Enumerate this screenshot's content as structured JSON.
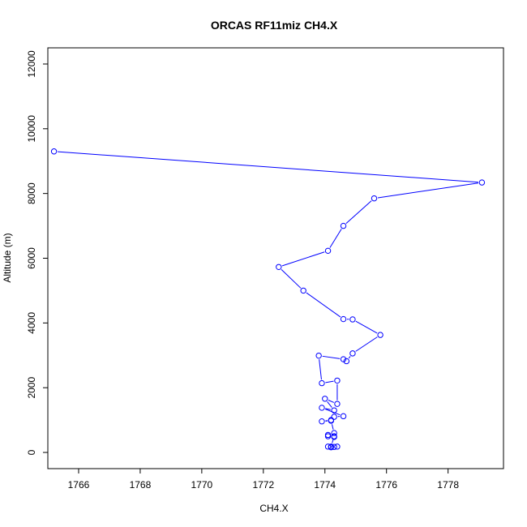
{
  "chart_data": {
    "type": "line",
    "title": "ORCAS RF11miz CH4.X",
    "xlabel": "CH4.X",
    "ylabel": "Altitude (m)",
    "xlim": [
      1765.0,
      1779.8
    ],
    "ylim": [
      -500,
      12500
    ],
    "xticks": [
      1766,
      1768,
      1770,
      1772,
      1774,
      1776,
      1778
    ],
    "yticks": [
      0,
      2000,
      4000,
      6000,
      8000,
      10000,
      12000
    ],
    "grid": false,
    "colors": {
      "series": "#0000ff",
      "axis": "#000000"
    },
    "series": [
      {
        "marker": "open-circle",
        "points": [
          {
            "x": 1765.2,
            "y": 9300
          },
          {
            "x": 1779.1,
            "y": 8340
          },
          {
            "x": 1775.6,
            "y": 7850
          },
          {
            "x": 1774.6,
            "y": 7000
          },
          {
            "x": 1774.1,
            "y": 6230
          },
          {
            "x": 1772.5,
            "y": 5730
          },
          {
            "x": 1773.3,
            "y": 5000
          },
          {
            "x": 1774.6,
            "y": 4120
          },
          {
            "x": 1774.9,
            "y": 4110
          },
          {
            "x": 1775.8,
            "y": 3630
          },
          {
            "x": 1774.9,
            "y": 3060
          },
          {
            "x": 1774.7,
            "y": 2820
          },
          {
            "x": 1774.6,
            "y": 2880
          },
          {
            "x": 1773.8,
            "y": 2990
          },
          {
            "x": 1773.9,
            "y": 2140
          },
          {
            "x": 1774.4,
            "y": 2220
          },
          {
            "x": 1774.4,
            "y": 1500
          },
          {
            "x": 1774.0,
            "y": 1660
          },
          {
            "x": 1774.3,
            "y": 1300
          },
          {
            "x": 1773.9,
            "y": 1380
          },
          {
            "x": 1774.6,
            "y": 1120
          },
          {
            "x": 1774.3,
            "y": 1100
          },
          {
            "x": 1774.2,
            "y": 1000
          },
          {
            "x": 1773.9,
            "y": 960
          },
          {
            "x": 1774.2,
            "y": 980
          },
          {
            "x": 1774.3,
            "y": 600
          },
          {
            "x": 1774.1,
            "y": 540
          },
          {
            "x": 1774.1,
            "y": 500
          },
          {
            "x": 1774.3,
            "y": 480
          },
          {
            "x": 1774.3,
            "y": 500
          },
          {
            "x": 1774.2,
            "y": 180
          },
          {
            "x": 1774.4,
            "y": 180
          },
          {
            "x": 1774.1,
            "y": 180
          },
          {
            "x": 1774.2,
            "y": 160
          },
          {
            "x": 1774.3,
            "y": 170
          }
        ]
      }
    ]
  }
}
